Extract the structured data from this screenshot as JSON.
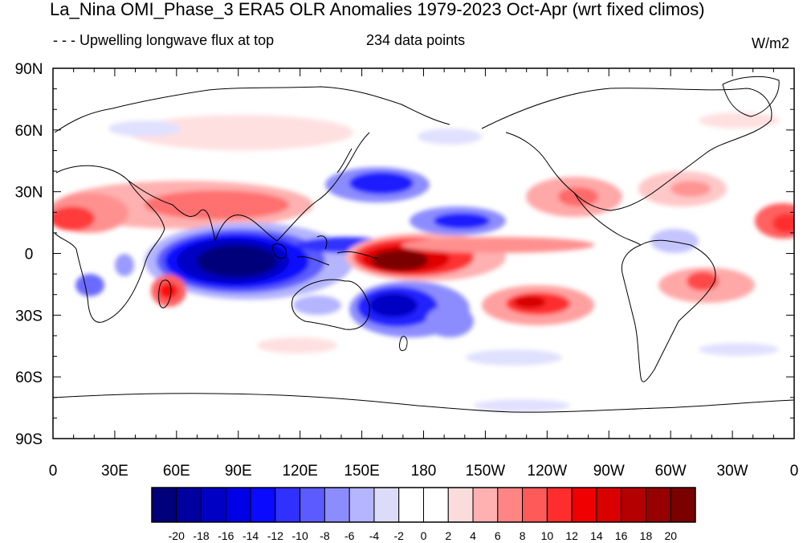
{
  "title": "La_Nina OMI_Phase_3 ERA5 OLR Anomalies 1979-2023 Oct-Apr (wrt fixed climos)",
  "left_string": "- - - Upwelling longwave flux at top",
  "center_string": "234 data points",
  "units": "W/m2",
  "map": {
    "projection": "cylindrical equidistant",
    "lon_range": [
      0,
      360
    ],
    "lat_range": [
      -90,
      90
    ],
    "lat_labels": [
      "90N",
      "60N",
      "30N",
      "0",
      "30S",
      "60S",
      "90S"
    ],
    "lon_labels": [
      "0",
      "30E",
      "60E",
      "90E",
      "120E",
      "150E",
      "180",
      "150W",
      "120W",
      "90W",
      "60W",
      "30W",
      "0"
    ]
  },
  "colorbar": {
    "labels": [
      "-20",
      "-18",
      "-16",
      "-14",
      "-12",
      "-10",
      "-8",
      "-6",
      "-4",
      "-2",
      "0",
      "2",
      "4",
      "6",
      "8",
      "10",
      "12",
      "14",
      "16",
      "18",
      "20"
    ],
    "colors": [
      "#00007a",
      "#0000a0",
      "#0000c4",
      "#0000e6",
      "#0a0aff",
      "#3030ff",
      "#5b5bff",
      "#8c8cff",
      "#b4b4ff",
      "#dcdcfa",
      "#ffffff",
      "#ffffff",
      "#fadcdc",
      "#ffb0b0",
      "#ff8484",
      "#ff5a5a",
      "#ff2d2d",
      "#f00000",
      "#d80000",
      "#b40000",
      "#960000",
      "#7a0000"
    ]
  },
  "anomaly_features": [
    {
      "name": "Indian Ocean / Maritime Continent negative",
      "lon": 95,
      "lat": -5,
      "value": -20
    },
    {
      "name": "West Pacific equatorial positive",
      "lon": 172,
      "lat": -3,
      "value": 20
    },
    {
      "name": "South Pacific negative",
      "lon": 165,
      "lat": -28,
      "value": -14
    },
    {
      "name": "North Pacific negative",
      "lon": 155,
      "lat": 33,
      "value": -12
    },
    {
      "name": "Central Pacific north negative",
      "lon": 200,
      "lat": 15,
      "value": -12
    },
    {
      "name": "Southeast Pacific positive",
      "lon": 235,
      "lat": -25,
      "value": 12
    },
    {
      "name": "South Asia / Arabia positive",
      "lon": 70,
      "lat": 25,
      "value": 8
    },
    {
      "name": "West Africa positive",
      "lon": 10,
      "lat": 15,
      "value": 10
    },
    {
      "name": "Madagascar positive",
      "lon": 47,
      "lat": -20,
      "value": 10
    },
    {
      "name": "South Atlantic positive",
      "lon": 318,
      "lat": -15,
      "value": 8
    },
    {
      "name": "Mexico / Gulf positive",
      "lon": 265,
      "lat": 25,
      "value": 8
    },
    {
      "name": "Southern Africa negative",
      "lon": 25,
      "lat": -18,
      "value": -8
    }
  ]
}
